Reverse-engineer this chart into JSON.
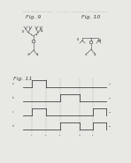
{
  "background_color": "#e8e8e4",
  "header_color": "#aaaaaa",
  "line_color": "#444444",
  "dashed_color": "#777777",
  "fig9_label": "Fig. 9",
  "fig10_label": "Fig. 10",
  "fig11_label": "Fig. 11",
  "label_fontsize": 4.5,
  "small_fontsize": 2.2,
  "header_fontsize": 1.6
}
